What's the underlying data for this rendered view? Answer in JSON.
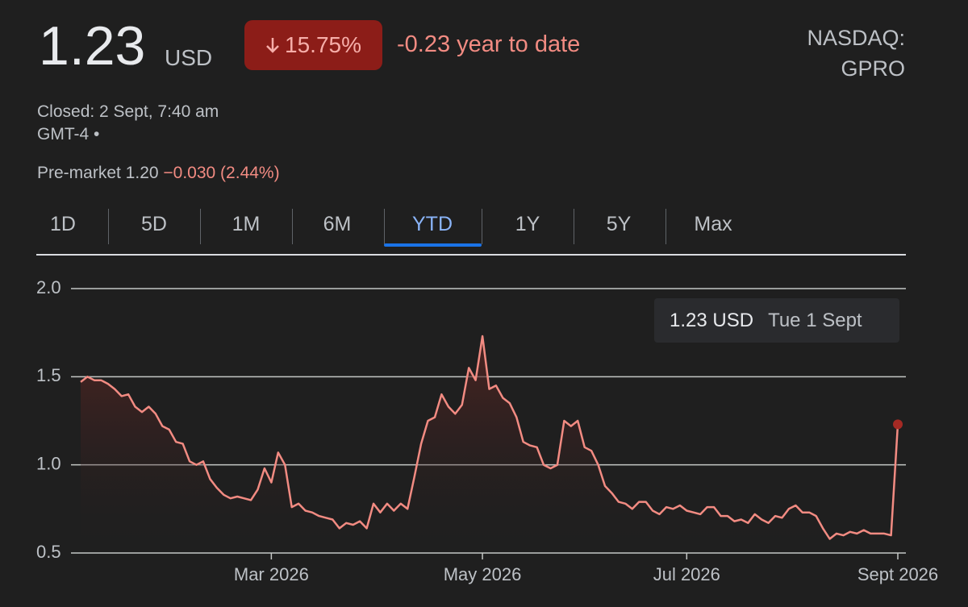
{
  "quote": {
    "price": "1.23",
    "currency": "USD",
    "change_percent": "15.75%",
    "change_ytd": "-0.23 year to date",
    "exchange": "NASDAQ:",
    "ticker": "GPRO",
    "closed": "Closed: 2 Sept, 7:40 am",
    "timezone": "GMT-4 •",
    "premarket": "Pre-market 1.20",
    "premarket_change": "−0.030 (2.44%)"
  },
  "tabs": [
    "1D",
    "5D",
    "1M",
    "6M",
    "YTD",
    "1Y",
    "5Y",
    "Max"
  ],
  "selected_tab": 4,
  "tooltip": {
    "value": "1.23 USD",
    "date": "Tue 1 Sept"
  },
  "chart_data": {
    "type": "line",
    "categories": [
      null,
      null,
      null,
      null,
      null,
      null,
      null,
      null,
      null,
      null,
      null,
      null,
      null,
      null,
      null,
      null,
      null,
      null,
      null,
      null,
      null,
      null,
      null,
      null,
      null,
      null,
      null,
      null,
      "Mar 2026",
      null,
      null,
      null,
      null,
      null,
      null,
      null,
      null,
      null,
      null,
      null,
      null,
      null,
      null,
      null,
      null,
      null,
      null,
      null,
      null,
      null,
      null,
      null,
      null,
      null,
      null,
      null,
      null,
      null,
      null,
      "May 2026",
      null,
      null,
      null,
      null,
      null,
      null,
      null,
      null,
      null,
      null,
      null,
      null,
      null,
      null,
      null,
      null,
      null,
      null,
      null,
      null,
      null,
      null,
      null,
      null,
      null,
      null,
      null,
      null,
      null,
      "Jul 2026",
      null,
      null,
      null,
      null,
      null,
      null,
      null,
      null,
      null,
      null,
      null,
      null,
      null,
      null,
      null,
      null,
      null,
      null,
      null,
      null,
      null,
      null,
      null,
      null,
      null,
      null,
      null,
      null,
      null,
      null,
      "Sept 2026"
    ],
    "series": [
      {
        "color": "#f28b82",
        "values": [
          1.47,
          1.5,
          1.48,
          1.48,
          1.46,
          1.43,
          1.39,
          1.4,
          1.33,
          1.3,
          1.33,
          1.29,
          1.22,
          1.2,
          1.13,
          1.12,
          1.02,
          1.0,
          1.02,
          0.92,
          0.87,
          0.83,
          0.81,
          0.82,
          0.81,
          0.8,
          0.86,
          0.98,
          0.9,
          1.07,
          1.0,
          0.76,
          0.78,
          0.74,
          0.73,
          0.71,
          0.7,
          0.69,
          0.64,
          0.67,
          0.66,
          0.68,
          0.64,
          0.78,
          0.73,
          0.78,
          0.74,
          0.78,
          0.75,
          0.93,
          1.12,
          1.25,
          1.27,
          1.4,
          1.33,
          1.29,
          1.34,
          1.55,
          1.48,
          1.73,
          1.43,
          1.45,
          1.38,
          1.35,
          1.27,
          1.13,
          1.11,
          1.1,
          1.0,
          0.98,
          1.0,
          1.25,
          1.22,
          1.25,
          1.1,
          1.08,
          1.0,
          0.88,
          0.84,
          0.79,
          0.78,
          0.75,
          0.79,
          0.79,
          0.74,
          0.72,
          0.76,
          0.75,
          0.77,
          0.74,
          0.73,
          0.72,
          0.76,
          0.76,
          0.71,
          0.71,
          0.68,
          0.69,
          0.67,
          0.72,
          0.69,
          0.67,
          0.71,
          0.7,
          0.75,
          0.77,
          0.73,
          0.73,
          0.71,
          0.64,
          0.58,
          0.61,
          0.6,
          0.62,
          0.61,
          0.63,
          0.61,
          0.61,
          0.61,
          0.6,
          1.23
        ]
      }
    ],
    "ylim": [
      0.5,
      2.0
    ],
    "yticks": [
      {
        "value": 2.0,
        "label": "2.0"
      },
      {
        "value": 1.5,
        "label": "1.5"
      },
      {
        "value": 1.0,
        "label": "1.0"
      },
      {
        "value": 0.5,
        "label": "0.5"
      }
    ],
    "grid": true
  }
}
